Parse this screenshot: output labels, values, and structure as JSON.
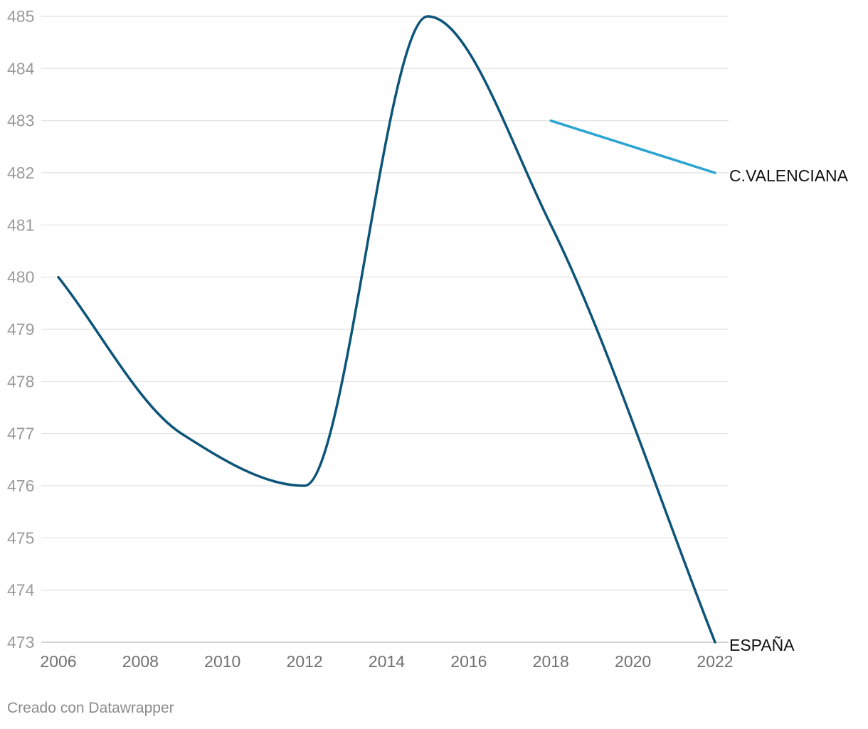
{
  "chart_data": {
    "type": "line",
    "x": [
      2006,
      2008,
      2010,
      2012,
      2014,
      2016,
      2018,
      2020,
      2022
    ],
    "ylim": [
      473,
      485
    ],
    "y_ticks": [
      473,
      474,
      475,
      476,
      477,
      478,
      479,
      480,
      481,
      482,
      483,
      484,
      485
    ],
    "x_ticks": [
      2006,
      2008,
      2010,
      2012,
      2014,
      2016,
      2018,
      2020,
      2022
    ],
    "grid": true,
    "legend": "none",
    "series": [
      {
        "name": "ESPAÑA",
        "color": "#0d5479",
        "curve": "smooth",
        "points": [
          [
            2006,
            480
          ],
          [
            2009,
            477
          ],
          [
            2012,
            476
          ],
          [
            2015,
            485
          ],
          [
            2018,
            481
          ],
          [
            2022,
            473
          ]
        ]
      },
      {
        "name": "C.VALENCIANA",
        "color": "#2aa4d2",
        "curve": "straight",
        "points": [
          [
            2018,
            483
          ],
          [
            2022,
            482
          ]
        ]
      }
    ]
  },
  "footer": {
    "credit": "Creado con Datawrapper"
  },
  "colors": {
    "grid": "#e1e1e1",
    "axis": "#c6c6c6"
  }
}
